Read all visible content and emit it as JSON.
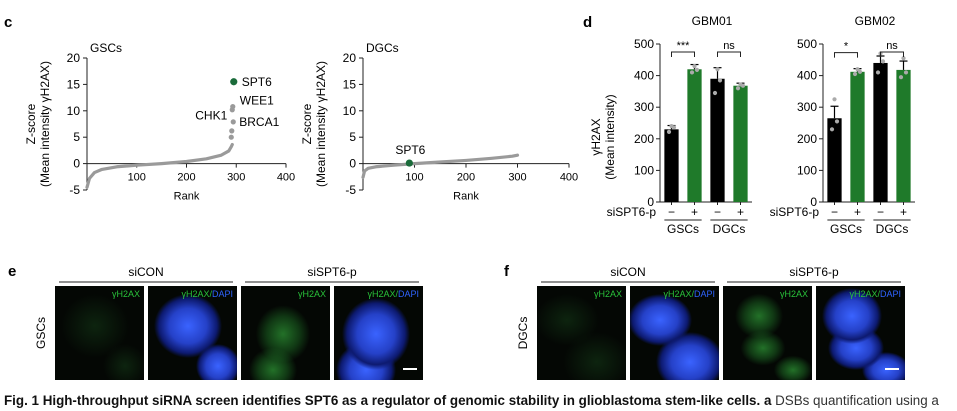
{
  "panel_labels": {
    "c": "c",
    "d": "d",
    "e": "e",
    "f": "f"
  },
  "chart_data": [
    {
      "type": "scatter",
      "panel": "c",
      "title": "GSCs",
      "xlabel": "Rank",
      "ylabel": "Z-score (Mean intensity γH2AX)",
      "xlim": [
        0,
        400
      ],
      "ylim": [
        -5,
        20
      ],
      "xticks": [
        100,
        200,
        300,
        400
      ],
      "yticks": [
        -5,
        0,
        5,
        10,
        15,
        20
      ],
      "curve": {
        "x": [
          0,
          5,
          15,
          30,
          60,
          100,
          150,
          200,
          240,
          270,
          285,
          290,
          292
        ],
        "y": [
          -4.5,
          -2.8,
          -1.7,
          -1.1,
          -0.6,
          -0.3,
          0.0,
          0.4,
          0.9,
          1.6,
          2.4,
          3.2,
          3.6
        ]
      },
      "highlight_points": [
        {
          "label": "SPT6",
          "x": 295,
          "y": 15.5,
          "color": "#1a6b3a"
        },
        {
          "label": "WEE1",
          "x": 293,
          "y": 10.8,
          "color": "#9a9a9a"
        },
        {
          "label": "CHK1",
          "x": 292,
          "y": 10.2,
          "color": "#9a9a9a"
        },
        {
          "label": "BRCA1",
          "x": 294,
          "y": 7.9,
          "color": "#9a9a9a"
        },
        {
          "label": "",
          "x": 291,
          "y": 6.2,
          "color": "#9a9a9a"
        },
        {
          "label": "",
          "x": 290,
          "y": 5.0,
          "color": "#9a9a9a"
        }
      ]
    },
    {
      "type": "scatter",
      "panel": "c",
      "title": "DGCs",
      "xlabel": "Rank",
      "ylabel": "Z-score (Mean intensity γH2AX)",
      "xlim": [
        0,
        400
      ],
      "ylim": [
        -5,
        20
      ],
      "xticks": [
        100,
        200,
        300,
        400
      ],
      "yticks": [
        -5,
        0,
        5,
        10,
        15,
        20
      ],
      "curve": {
        "x": [
          0,
          3,
          10,
          25,
          60,
          100,
          150,
          200,
          250,
          290,
          300
        ],
        "y": [
          -2.6,
          -1.4,
          -0.9,
          -0.6,
          -0.3,
          0.0,
          0.3,
          0.6,
          1.0,
          1.4,
          1.6
        ]
      },
      "highlight_points": [
        {
          "label": "SPT6",
          "x": 90,
          "y": 0.1,
          "color": "#1a6b3a"
        }
      ]
    },
    {
      "type": "bar",
      "panel": "d",
      "title": "GBM01",
      "ylabel": "γH2AX (Mean intensity)",
      "ylim": [
        0,
        500
      ],
      "yticks": [
        0,
        100,
        200,
        300,
        400,
        500
      ],
      "row_label": "siSPT6-p",
      "categories": [
        "−",
        "+",
        "−",
        "+"
      ],
      "groups": [
        "GSCs",
        "DGCs"
      ],
      "values": [
        230,
        420,
        390,
        368
      ],
      "errors": [
        12,
        15,
        35,
        8
      ],
      "colors": [
        "#000000",
        "#1f7a2a",
        "#000000",
        "#1f7a2a"
      ],
      "points": [
        [
          222,
          236,
          240
        ],
        [
          410,
          418,
          430
        ],
        [
          345,
          385,
          420
        ],
        [
          360,
          368,
          372
        ]
      ],
      "significance": [
        {
          "label": "***",
          "from": 0,
          "to": 1
        },
        {
          "label": "ns",
          "from": 2,
          "to": 3
        }
      ]
    },
    {
      "type": "bar",
      "panel": "d",
      "title": "GBM02",
      "ylabel": "γH2AX (Mean intensity)",
      "ylim": [
        0,
        500
      ],
      "yticks": [
        0,
        100,
        200,
        300,
        400,
        500
      ],
      "row_label": "siSPT6-p",
      "categories": [
        "−",
        "+",
        "−",
        "+"
      ],
      "groups": [
        "GSCs",
        "DGCs"
      ],
      "values": [
        265,
        412,
        440,
        418
      ],
      "errors": [
        38,
        10,
        22,
        28
      ],
      "colors": [
        "#000000",
        "#1f7a2a",
        "#000000",
        "#1f7a2a"
      ],
      "points": [
        [
          230,
          255,
          325
        ],
        [
          405,
          412,
          420
        ],
        [
          410,
          445,
          470
        ],
        [
          395,
          410,
          455
        ]
      ],
      "significance": [
        {
          "label": "*",
          "from": 0,
          "to": 1
        },
        {
          "label": "ns",
          "from": 2,
          "to": 3
        }
      ]
    }
  ],
  "micrographs": {
    "e": {
      "row_label": "GSCs",
      "headers": [
        "siCON",
        "siSPT6-p"
      ],
      "channels": [
        "γH2AX",
        "γH2AX/DAPI",
        "γH2AX",
        "γH2AX/DAPI"
      ]
    },
    "f": {
      "row_label": "DGCs",
      "headers": [
        "siCON",
        "siSPT6-p"
      ],
      "channels": [
        "γH2AX",
        "γH2AX/DAPI",
        "γH2AX",
        "γH2AX/DAPI"
      ]
    },
    "channel_parts": {
      "gamma": "γH2AX",
      "slash": "/",
      "dapi": "DAPI"
    }
  },
  "caption": {
    "bold": "Fig. 1 High-throughput siRNA screen identifies SPT6 as a regulator of genomic stability in glioblastoma stem-like cells. a",
    "rest": " DSBs quantification using a"
  },
  "colors": {
    "green": "#1f7a2a",
    "spt6_point": "#1a6b3a",
    "grey_points": "#9a9a9a",
    "bar_black": "#000000",
    "dapi_blue": "#2f63ff",
    "gh2ax_green": "#29c23a"
  }
}
